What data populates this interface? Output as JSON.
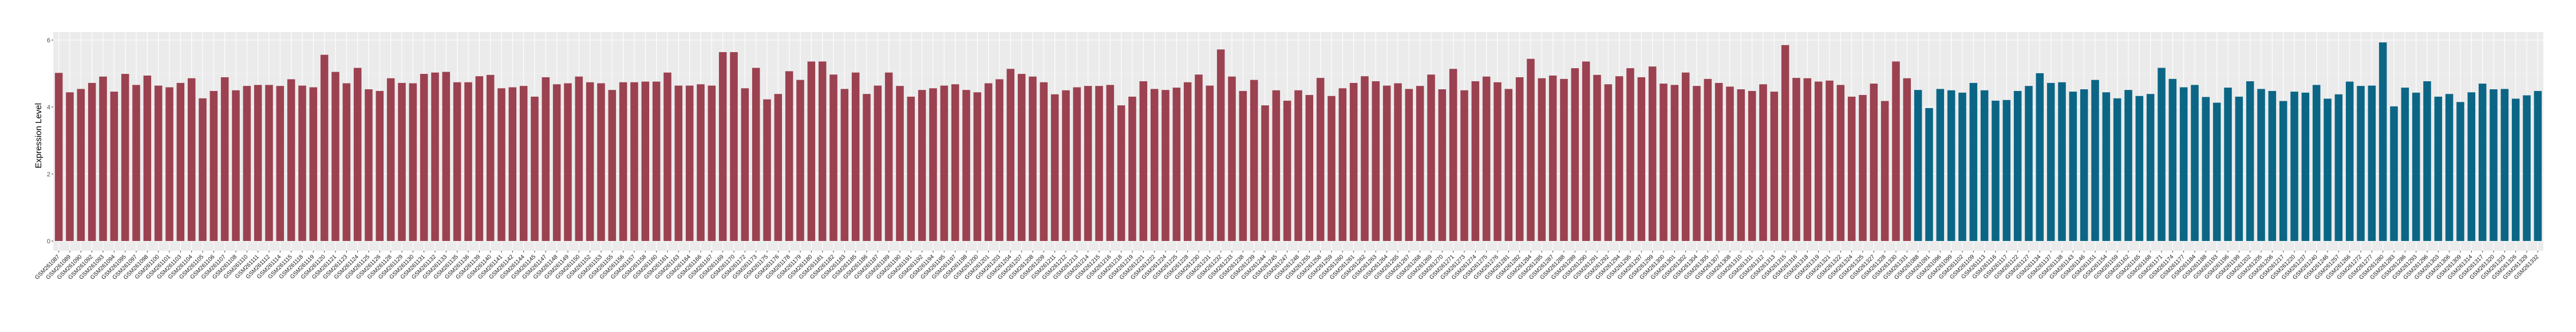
{
  "chart_data": {
    "type": "bar",
    "title": "",
    "xlabel": "",
    "ylabel": "Expression Level",
    "ylim": [
      -0.3,
      6.2
    ],
    "yticks": [
      0,
      2,
      4,
      6
    ],
    "ytick_labels": [
      "0",
      "2",
      "4",
      "6"
    ],
    "grid": true,
    "legend": "none",
    "series": [
      {
        "color": "#9b4150",
        "categories": [
          "GSM261087",
          "GSM261089",
          "GSM261090",
          "GSM261092",
          "GSM261093",
          "GSM261094",
          "GSM261095",
          "GSM261097",
          "GSM261098",
          "GSM261100",
          "GSM261101",
          "GSM261103",
          "GSM261104",
          "GSM261105",
          "GSM261106",
          "GSM261107",
          "GSM261108",
          "GSM261110",
          "GSM261111",
          "GSM261112",
          "GSM261114",
          "GSM261115",
          "GSM261118",
          "GSM261119",
          "GSM261120",
          "GSM261121",
          "GSM261123",
          "GSM261124",
          "GSM261125",
          "GSM261126",
          "GSM261128",
          "GSM261129",
          "GSM261130",
          "GSM261131",
          "GSM261132",
          "GSM261133",
          "GSM261135",
          "GSM261136",
          "GSM261139",
          "GSM261140",
          "GSM261141",
          "GSM261142",
          "GSM261144",
          "GSM261145",
          "GSM261147",
          "GSM261148",
          "GSM261149",
          "GSM261150",
          "GSM261152",
          "GSM261153",
          "GSM261155",
          "GSM261156",
          "GSM261157",
          "GSM261158",
          "GSM261160",
          "GSM261161",
          "GSM261163",
          "GSM261164",
          "GSM261166",
          "GSM261167",
          "GSM261169",
          "GSM261170",
          "GSM261172",
          "GSM261173",
          "GSM261175",
          "GSM261176",
          "GSM261178",
          "GSM261179",
          "GSM261180",
          "GSM261181",
          "GSM261182",
          "GSM261183",
          "GSM261185",
          "GSM261186",
          "GSM261187",
          "GSM261189",
          "GSM261190",
          "GSM261191",
          "GSM261192",
          "GSM261194",
          "GSM261195",
          "GSM261197",
          "GSM261198",
          "GSM261200",
          "GSM261201",
          "GSM261203",
          "GSM261204",
          "GSM261207",
          "GSM261208",
          "GSM261209",
          "GSM261211",
          "GSM261212",
          "GSM261213",
          "GSM261214",
          "GSM261215",
          "GSM261216",
          "GSM261218",
          "GSM261219",
          "GSM261221",
          "GSM261222",
          "GSM261224",
          "GSM261225",
          "GSM261228",
          "GSM261230",
          "GSM261231",
          "GSM261232",
          "GSM261233",
          "GSM261238",
          "GSM261239",
          "GSM261244",
          "GSM261245",
          "GSM261247",
          "GSM261248",
          "GSM261255",
          "GSM261258",
          "GSM261259",
          "GSM261260",
          "GSM261261",
          "GSM261262",
          "GSM261263",
          "GSM261264",
          "GSM261265",
          "GSM261267",
          "GSM261268",
          "GSM261269",
          "GSM261270",
          "GSM261271",
          "GSM261273",
          "GSM261274",
          "GSM261275",
          "GSM261276",
          "GSM261281",
          "GSM261282",
          "GSM261284",
          "GSM261285",
          "GSM261287",
          "GSM261288",
          "GSM261289",
          "GSM261290",
          "GSM261291",
          "GSM261292",
          "GSM261294",
          "GSM261295",
          "GSM261297",
          "GSM261299",
          "GSM261300",
          "GSM261301",
          "GSM261302",
          "GSM261304",
          "GSM261305",
          "GSM261307",
          "GSM261308",
          "GSM261310",
          "GSM261311",
          "GSM261312",
          "GSM261313",
          "GSM261315",
          "GSM261316",
          "GSM261318",
          "GSM261319",
          "GSM261321",
          "GSM261322",
          "GSM261324",
          "GSM261325",
          "GSM261327",
          "GSM261328",
          "GSM261330",
          "GSM261331"
        ],
        "values": [
          5.02,
          4.44,
          4.54,
          4.72,
          4.91,
          4.46,
          4.99,
          4.66,
          4.94,
          4.64,
          4.59,
          4.72,
          4.86,
          4.26,
          4.48,
          4.89,
          4.5,
          4.63,
          4.66,
          4.66,
          4.63,
          4.83,
          4.64,
          4.59,
          5.56,
          5.05,
          4.71,
          5.17,
          4.53,
          4.48,
          4.86,
          4.72,
          4.71,
          4.99,
          5.03,
          5.05,
          4.74,
          4.74,
          4.92,
          4.96,
          4.56,
          4.59,
          4.63,
          4.31,
          4.89,
          4.68,
          4.71,
          4.91,
          4.74,
          4.71,
          4.51,
          4.74,
          4.74,
          4.76,
          4.76,
          5.03,
          4.64,
          4.64,
          4.68,
          4.64,
          5.64,
          5.64,
          4.56,
          5.17,
          4.23,
          4.39,
          5.07,
          4.81,
          5.36,
          5.36,
          4.97,
          4.54,
          5.03,
          4.39,
          4.64,
          5.03,
          4.63,
          4.31,
          4.51,
          4.56,
          4.64,
          4.68,
          4.51,
          4.44,
          4.71,
          4.83,
          5.14,
          4.99,
          4.91,
          4.74,
          4.38,
          4.5,
          4.59,
          4.63,
          4.63,
          4.66,
          4.05,
          4.31,
          4.77,
          4.54,
          4.51,
          4.58,
          4.74,
          4.97,
          4.64,
          5.72,
          4.91,
          4.48,
          4.81,
          4.05,
          4.5,
          4.19,
          4.5,
          4.36,
          4.87,
          4.33,
          4.56,
          4.72,
          4.92,
          4.77,
          4.64,
          4.71,
          4.54,
          4.63,
          4.97,
          4.53,
          5.14,
          4.5,
          4.77,
          4.91,
          4.74,
          4.54,
          4.89,
          5.44,
          4.86,
          4.94,
          4.84,
          5.16,
          5.36,
          4.96,
          4.68,
          4.92,
          5.16,
          4.89,
          5.21,
          4.7,
          4.66,
          5.03,
          4.63,
          4.84,
          4.72,
          4.61,
          4.53,
          4.48,
          4.68,
          4.46,
          5.85,
          4.87,
          4.86,
          4.76,
          4.79,
          4.66,
          4.31,
          4.36,
          4.7,
          4.18,
          5.36,
          4.86
        ]
      },
      {
        "color": "#0b6686",
        "categories": [
          "GSM261088",
          "GSM261091",
          "GSM261096",
          "GSM261099",
          "GSM261102",
          "GSM261109",
          "GSM261113",
          "GSM261116",
          "GSM261117",
          "GSM261122",
          "GSM261127",
          "GSM261134",
          "GSM261137",
          "GSM261138",
          "GSM261143",
          "GSM261146",
          "GSM261151",
          "GSM261154",
          "GSM261159",
          "GSM261162",
          "GSM261165",
          "GSM261168",
          "GSM261171",
          "GSM261174",
          "GSM261177",
          "GSM261184",
          "GSM261188",
          "GSM261193",
          "GSM261196",
          "GSM261199",
          "GSM261202",
          "GSM261205",
          "GSM261206",
          "GSM261217",
          "GSM261220",
          "GSM261237",
          "GSM261240",
          "GSM261246",
          "GSM261257",
          "GSM261266",
          "GSM261272",
          "GSM261277",
          "GSM261280",
          "GSM261283",
          "GSM261286",
          "GSM261293",
          "GSM261296",
          "GSM261303",
          "GSM261306",
          "GSM261309",
          "GSM261314",
          "GSM261317",
          "GSM261320",
          "GSM261323",
          "GSM261326",
          "GSM261329",
          "GSM261332"
        ],
        "values": [
          4.51,
          3.97,
          4.54,
          4.5,
          4.43,
          4.72,
          4.5,
          4.19,
          4.21,
          4.48,
          4.63,
          5.01,
          4.72,
          4.74,
          4.46,
          4.53,
          4.81,
          4.44,
          4.26,
          4.51,
          4.33,
          4.39,
          5.17,
          4.84,
          4.59,
          4.66,
          4.3,
          4.13,
          4.58,
          4.31,
          4.77,
          4.54,
          4.48,
          4.18,
          4.46,
          4.43,
          4.66,
          4.25,
          4.38,
          4.76,
          4.63,
          4.64,
          5.93,
          4.02,
          4.58,
          4.43,
          4.77,
          4.31,
          4.39,
          4.15,
          4.44,
          4.7,
          4.53,
          4.54,
          4.25,
          4.35,
          4.48
        ]
      }
    ]
  }
}
